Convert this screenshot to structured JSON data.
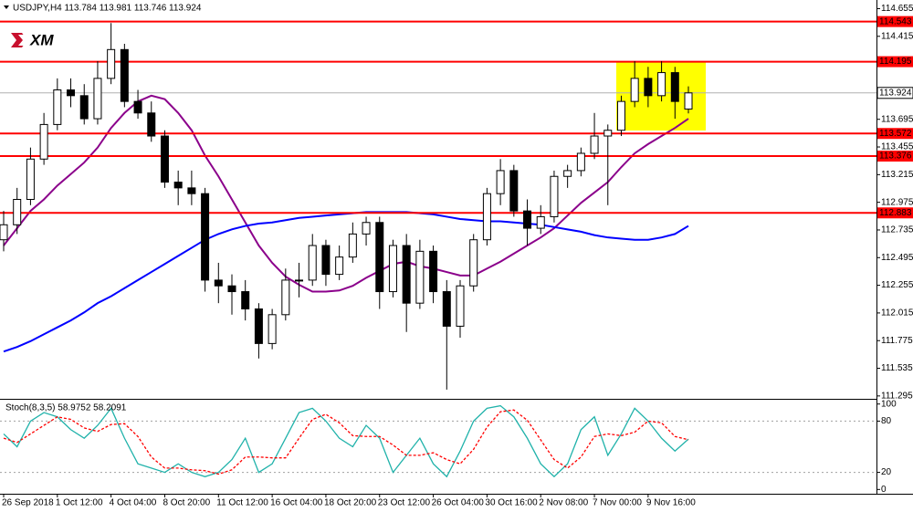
{
  "logo": "XM",
  "chart_data": [
    {
      "type": "candlestick",
      "title": "USDJPY,H4  113.784 113.981 113.746 113.924",
      "categories": [
        "26 Sep 2018",
        null,
        null,
        null,
        "1 Oct 12:00",
        null,
        null,
        null,
        "4 Oct 04:00",
        null,
        null,
        null,
        "8 Oct 20:00",
        null,
        null,
        null,
        "11 Oct 12:00",
        null,
        null,
        null,
        "16 Oct 04:00",
        null,
        null,
        null,
        "18 Oct 20:00",
        null,
        null,
        null,
        "23 Oct 12:00",
        null,
        null,
        null,
        "26 Oct 04:00",
        null,
        null,
        null,
        "30 Oct 16:00",
        null,
        null,
        null,
        "2 Nov 08:00",
        null,
        null,
        null,
        "7 Nov 00:00",
        null,
        null,
        null,
        "9 Nov 16:00",
        null,
        null,
        null
      ],
      "open": [
        112.65,
        112.78,
        113.0,
        113.35,
        113.65,
        113.95,
        113.9,
        113.7,
        114.05,
        114.3,
        113.85,
        113.75,
        113.55,
        113.15,
        113.1,
        113.05,
        112.3,
        112.25,
        112.2,
        112.05,
        111.75,
        112.0,
        112.3,
        112.3,
        112.6,
        112.35,
        112.5,
        112.7,
        112.8,
        112.2,
        112.6,
        112.1,
        112.55,
        112.2,
        111.9,
        112.25,
        112.65,
        113.05,
        113.25,
        112.9,
        112.75,
        112.85,
        113.2,
        113.25,
        113.4,
        113.55,
        113.6,
        113.85,
        114.05,
        113.9,
        114.1,
        113.784
      ],
      "high": [
        112.9,
        113.1,
        113.45,
        113.75,
        114.05,
        114.05,
        114.0,
        114.2,
        114.53,
        114.35,
        113.95,
        113.85,
        113.6,
        113.25,
        113.25,
        113.1,
        112.45,
        112.35,
        112.3,
        112.1,
        112.05,
        112.4,
        112.45,
        112.7,
        112.65,
        112.6,
        112.8,
        112.85,
        112.85,
        112.65,
        112.7,
        112.65,
        112.6,
        112.3,
        112.3,
        112.7,
        113.1,
        113.35,
        113.3,
        113.0,
        112.95,
        113.25,
        113.3,
        113.45,
        113.75,
        113.65,
        113.9,
        114.2,
        114.15,
        114.2,
        114.15,
        113.981
      ],
      "low": [
        112.55,
        112.7,
        112.95,
        113.3,
        113.6,
        113.8,
        113.65,
        113.65,
        114.0,
        113.8,
        113.7,
        113.5,
        113.1,
        112.95,
        112.95,
        112.2,
        112.1,
        112.0,
        111.95,
        111.62,
        111.7,
        111.95,
        112.15,
        112.25,
        112.25,
        112.3,
        112.45,
        112.6,
        112.05,
        112.15,
        111.85,
        112.05,
        112.1,
        111.35,
        111.8,
        112.2,
        112.6,
        112.95,
        112.85,
        112.6,
        112.7,
        112.8,
        113.1,
        113.2,
        113.35,
        112.95,
        113.55,
        113.8,
        113.8,
        113.85,
        113.7,
        113.746
      ],
      "close": [
        112.78,
        113.0,
        113.35,
        113.65,
        113.95,
        113.9,
        113.7,
        114.05,
        114.3,
        113.85,
        113.75,
        113.55,
        113.15,
        113.1,
        113.05,
        112.3,
        112.25,
        112.2,
        112.05,
        111.75,
        112.0,
        112.3,
        112.3,
        112.6,
        112.35,
        112.5,
        112.7,
        112.8,
        112.2,
        112.6,
        112.1,
        112.55,
        112.2,
        111.9,
        112.25,
        112.65,
        113.05,
        113.25,
        112.9,
        112.75,
        112.85,
        113.2,
        113.25,
        113.4,
        113.55,
        113.6,
        113.85,
        114.05,
        113.9,
        114.1,
        113.85,
        113.924
      ],
      "lines": [
        {
          "color": "#8b008b",
          "values": [
            112.6,
            112.75,
            112.9,
            113.0,
            113.12,
            113.22,
            113.32,
            113.45,
            113.62,
            113.75,
            113.85,
            113.9,
            113.87,
            113.75,
            113.6,
            113.38,
            113.2,
            113.0,
            112.8,
            112.6,
            112.45,
            112.33,
            112.26,
            112.2,
            112.2,
            112.21,
            112.25,
            112.32,
            112.38,
            112.44,
            112.46,
            112.42,
            112.4,
            112.37,
            112.34,
            112.34,
            112.4,
            112.46,
            112.53,
            112.6,
            112.67,
            112.75,
            112.86,
            112.97,
            113.06,
            113.15,
            113.28,
            113.4,
            113.48,
            113.55,
            113.62,
            113.7
          ]
        },
        {
          "color": "#0000ff",
          "values": [
            111.68,
            111.72,
            111.77,
            111.83,
            111.89,
            111.95,
            112.02,
            112.1,
            112.16,
            112.23,
            112.3,
            112.37,
            112.44,
            112.51,
            112.58,
            112.65,
            112.7,
            112.74,
            112.77,
            112.79,
            112.8,
            112.82,
            112.84,
            112.85,
            112.86,
            112.87,
            112.88,
            112.89,
            112.89,
            112.89,
            112.89,
            112.88,
            112.87,
            112.85,
            112.83,
            112.82,
            112.81,
            112.81,
            112.8,
            112.79,
            112.78,
            112.76,
            112.74,
            112.72,
            112.69,
            112.67,
            112.66,
            112.65,
            112.65,
            112.67,
            112.7,
            112.77
          ]
        }
      ],
      "levels": [
        {
          "value": 114.543,
          "color": "#ff0000"
        },
        {
          "value": 114.195,
          "color": "#ff0000"
        },
        {
          "value": 113.572,
          "color": "#ff0000"
        },
        {
          "value": 113.376,
          "color": "#ff0000"
        },
        {
          "value": 112.883,
          "color": "#ff0000"
        }
      ],
      "current_price": 113.924,
      "ylim": [
        111.27,
        114.73
      ],
      "yticks": [
        114.655,
        114.415,
        113.695,
        113.455,
        113.215,
        112.975,
        112.735,
        112.495,
        112.255,
        112.015,
        111.775,
        111.535,
        111.295
      ]
    },
    {
      "type": "line",
      "title": "Stoch(8,3,5) 58.9752 58.2091",
      "series": [
        {
          "color": "#20b2aa",
          "dashed": false,
          "values": [
            65,
            50,
            80,
            90,
            85,
            70,
            60,
            75,
            95,
            60,
            30,
            25,
            20,
            30,
            20,
            15,
            20,
            35,
            60,
            20,
            30,
            60,
            90,
            95,
            80,
            60,
            50,
            75,
            60,
            20,
            40,
            60,
            30,
            15,
            45,
            80,
            95,
            98,
            85,
            60,
            30,
            15,
            30,
            70,
            85,
            40,
            65,
            95,
            80,
            60,
            45,
            58.9752
          ]
        },
        {
          "color": "#ff0000",
          "dashed": true,
          "values": [
            60,
            55,
            65,
            75,
            85,
            82,
            72,
            68,
            76,
            77,
            62,
            38,
            25,
            25,
            23,
            22,
            18,
            23,
            38,
            38,
            37,
            37,
            60,
            82,
            88,
            78,
            63,
            62,
            62,
            52,
            40,
            40,
            43,
            35,
            30,
            47,
            73,
            91,
            93,
            81,
            58,
            35,
            25,
            38,
            62,
            65,
            63,
            67,
            80,
            78,
            62,
            58.2091
          ]
        }
      ],
      "levels": [
        80,
        20
      ],
      "ylim": [
        -5,
        105
      ],
      "yticks": [
        100,
        80,
        20,
        0
      ]
    }
  ]
}
